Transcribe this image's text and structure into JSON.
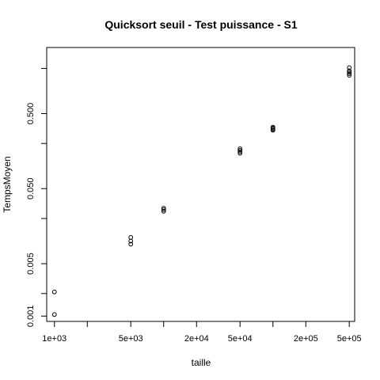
{
  "chart_data": {
    "type": "scatter",
    "title": "Quicksort seuil - Test puissance - S1",
    "xlabel": "taille",
    "ylabel": "TempsMoyen",
    "x_scale": "log",
    "y_scale": "log",
    "xlim": [
      850,
      560000
    ],
    "ylim": [
      0.00085,
      3.8
    ],
    "grid": false,
    "legend": "none",
    "x_ticks": [
      {
        "value": 1000,
        "label": "1e+03"
      },
      {
        "value": 2000,
        "label": ""
      },
      {
        "value": 5000,
        "label": "5e+03"
      },
      {
        "value": 10000,
        "label": ""
      },
      {
        "value": 20000,
        "label": "2e+04"
      },
      {
        "value": 50000,
        "label": "5e+04"
      },
      {
        "value": 100000,
        "label": ""
      },
      {
        "value": 200000,
        "label": "2e+05"
      },
      {
        "value": 500000,
        "label": "5e+05"
      }
    ],
    "y_ticks": [
      {
        "value": 0.001,
        "label": "0.001"
      },
      {
        "value": 0.002,
        "label": ""
      },
      {
        "value": 0.005,
        "label": "0.005"
      },
      {
        "value": 0.02,
        "label": ""
      },
      {
        "value": 0.05,
        "label": "0.050"
      },
      {
        "value": 0.2,
        "label": ""
      },
      {
        "value": 0.5,
        "label": "0.500"
      },
      {
        "value": 2,
        "label": ""
      }
    ],
    "points": [
      {
        "x": 1000,
        "y": 0.00105
      },
      {
        "x": 1000,
        "y": 0.0021
      },
      {
        "x": 5000,
        "y": 0.0091
      },
      {
        "x": 5000,
        "y": 0.01
      },
      {
        "x": 5000,
        "y": 0.0112
      },
      {
        "x": 10000,
        "y": 0.025
      },
      {
        "x": 10000,
        "y": 0.0262
      },
      {
        "x": 10000,
        "y": 0.0274
      },
      {
        "x": 50000,
        "y": 0.148
      },
      {
        "x": 50000,
        "y": 0.155
      },
      {
        "x": 50000,
        "y": 0.162
      },
      {
        "x": 50000,
        "y": 0.17
      },
      {
        "x": 100000,
        "y": 0.3
      },
      {
        "x": 100000,
        "y": 0.31
      },
      {
        "x": 100000,
        "y": 0.32
      },
      {
        "x": 100000,
        "y": 0.33
      },
      {
        "x": 500000,
        "y": 1.62
      },
      {
        "x": 500000,
        "y": 1.7
      },
      {
        "x": 500000,
        "y": 1.78
      },
      {
        "x": 500000,
        "y": 1.86
      },
      {
        "x": 500000,
        "y": 2.05
      }
    ]
  }
}
